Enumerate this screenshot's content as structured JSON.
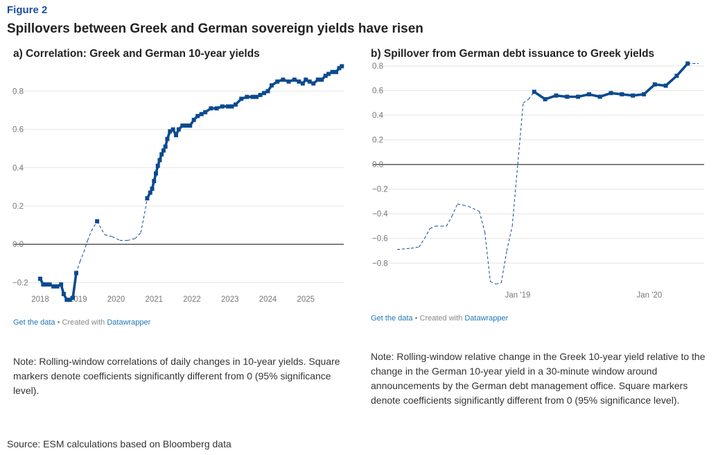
{
  "figure_label": "Figure 2",
  "title": "Spillovers between Greek and German sovereign yields have risen",
  "panel_a": {
    "title": "a) Correlation: Greek and German 10-year yields",
    "footer_get": "Get the data",
    "footer_mid": " • Created with ",
    "footer_tool": "Datawrapper",
    "note": "Note: Rolling-window correlations of daily changes in 10-year yields. Square markers denote coefficients significantly different from 0 (95% significance level)."
  },
  "panel_b": {
    "title": "b) Spillover from German debt issuance to Greek yields",
    "footer_get": "Get the data",
    "footer_mid": " • Created with ",
    "footer_tool": "Datawrapper",
    "note": "Note: Rolling-window relative change in the Greek 10-year yield relative to the change in the German 10-year yield in a 30-minute window around announcements by the German debt management office. Square markers denote coefficients significantly different from 0 (95% significance level)."
  },
  "source": "Source: ESM calculations based on Bloomberg data",
  "colors": {
    "accent": "#1f4e9c",
    "series": "#0b4a8f",
    "grid": "#e4e4e4",
    "zero": "#222222"
  },
  "chart_data": [
    {
      "type": "line",
      "title": "a) Correlation: Greek and German 10-year yields",
      "xlabel": "",
      "ylabel": "",
      "xlim": [
        2018.0,
        2026.0
      ],
      "ylim": [
        -0.3,
        0.95
      ],
      "yticks": [
        -0.2,
        0.0,
        0.2,
        0.4,
        0.6,
        0.8
      ],
      "ytick_labels": [
        "−0.2",
        "0.0",
        "0.2",
        "0.4",
        "0.6",
        "0.8"
      ],
      "xticks": [
        2018,
        2019,
        2020,
        2021,
        2022,
        2023,
        2024,
        2025
      ],
      "xtick_labels": [
        "2018",
        "2019",
        "2020",
        "2021",
        "2022",
        "2023",
        "2024",
        "2025"
      ],
      "series": [
        {
          "name": "Correlation",
          "note": "thick line with square markers = significant; dashed = not significant",
          "x": [
            2018.0,
            2018.08,
            2018.15,
            2018.25,
            2018.35,
            2018.45,
            2018.55,
            2018.62,
            2018.7,
            2018.78,
            2018.86,
            2018.95,
            2019.05,
            2019.15,
            2019.25,
            2019.35,
            2019.5,
            2019.7,
            2019.9,
            2020.1,
            2020.3,
            2020.5,
            2020.65,
            2020.75,
            2020.82,
            2020.9,
            2020.95,
            2021.0,
            2021.05,
            2021.1,
            2021.15,
            2021.2,
            2021.25,
            2021.3,
            2021.35,
            2021.42,
            2021.5,
            2021.58,
            2021.65,
            2021.75,
            2021.85,
            2021.95,
            2022.05,
            2022.15,
            2022.25,
            2022.35,
            2022.5,
            2022.65,
            2022.8,
            2022.95,
            2023.05,
            2023.15,
            2023.3,
            2023.45,
            2023.6,
            2023.7,
            2023.8,
            2023.9,
            2024.0,
            2024.1,
            2024.25,
            2024.4,
            2024.55,
            2024.7,
            2024.82,
            2024.92,
            2025.0,
            2025.1,
            2025.2,
            2025.32,
            2025.42,
            2025.52,
            2025.6,
            2025.7,
            2025.8,
            2025.88,
            2025.95
          ],
          "y": [
            -0.18,
            -0.21,
            -0.21,
            -0.21,
            -0.22,
            -0.22,
            -0.21,
            -0.26,
            -0.29,
            -0.29,
            -0.28,
            -0.15,
            -0.09,
            -0.04,
            0.02,
            0.07,
            0.12,
            0.05,
            0.04,
            0.02,
            0.02,
            0.03,
            0.06,
            0.16,
            0.24,
            0.27,
            0.29,
            0.33,
            0.37,
            0.41,
            0.44,
            0.47,
            0.49,
            0.51,
            0.55,
            0.59,
            0.6,
            0.57,
            0.6,
            0.62,
            0.62,
            0.62,
            0.65,
            0.67,
            0.68,
            0.69,
            0.71,
            0.71,
            0.72,
            0.72,
            0.72,
            0.73,
            0.76,
            0.77,
            0.77,
            0.77,
            0.78,
            0.79,
            0.8,
            0.83,
            0.85,
            0.86,
            0.85,
            0.86,
            0.85,
            0.84,
            0.86,
            0.85,
            0.84,
            0.86,
            0.86,
            0.88,
            0.89,
            0.9,
            0.9,
            0.92,
            0.93
          ],
          "significant": [
            true,
            true,
            true,
            true,
            true,
            true,
            true,
            true,
            true,
            true,
            true,
            true,
            false,
            false,
            false,
            false,
            true,
            false,
            false,
            false,
            false,
            false,
            false,
            false,
            true,
            true,
            true,
            true,
            true,
            true,
            true,
            true,
            true,
            true,
            true,
            true,
            true,
            true,
            true,
            true,
            true,
            true,
            true,
            true,
            true,
            true,
            true,
            true,
            true,
            true,
            true,
            true,
            true,
            true,
            true,
            true,
            true,
            true,
            true,
            true,
            true,
            true,
            true,
            true,
            true,
            true,
            true,
            true,
            true,
            true,
            true,
            true,
            true,
            true,
            true,
            true,
            true
          ]
        }
      ]
    },
    {
      "type": "line",
      "title": "b) Spillover from German debt issuance to Greek yields",
      "xlabel": "",
      "ylabel": "",
      "xlim": [
        0,
        56
      ],
      "ylim": [
        -0.99,
        0.84
      ],
      "yticks": [
        -0.8,
        -0.6,
        -0.4,
        -0.2,
        0.0,
        0.2,
        0.4,
        0.6,
        0.8
      ],
      "ytick_labels": [
        "−0.8",
        "−0.6",
        "−0.4",
        "−0.2",
        "0.0",
        "0.2",
        "0.4",
        "0.6",
        "0.8"
      ],
      "xticks": [
        22,
        46
      ],
      "xtick_labels": [
        "Jan '19",
        "Jan '20"
      ],
      "series": [
        {
          "name": "Spillover",
          "note": "thick line with square markers = significant; dashed = not significant",
          "x": [
            0,
            2.5,
            4,
            5,
            6,
            7,
            8,
            9,
            10,
            11,
            12,
            13,
            15,
            16,
            17,
            18,
            19,
            20,
            21,
            22,
            23,
            24,
            25,
            27,
            29,
            31,
            33,
            35,
            37,
            39,
            41,
            43,
            45,
            47,
            49,
            51,
            53,
            55
          ],
          "y": [
            -0.69,
            -0.68,
            -0.67,
            -0.6,
            -0.52,
            -0.5,
            -0.5,
            -0.5,
            -0.42,
            -0.32,
            -0.33,
            -0.34,
            -0.38,
            -0.55,
            -0.95,
            -0.97,
            -0.96,
            -0.7,
            -0.5,
            0.0,
            0.5,
            0.53,
            0.59,
            0.53,
            0.56,
            0.55,
            0.55,
            0.57,
            0.55,
            0.58,
            0.57,
            0.56,
            0.57,
            0.65,
            0.64,
            0.72,
            0.82,
            0.82
          ],
          "significant": [
            false,
            false,
            false,
            false,
            false,
            false,
            false,
            false,
            false,
            false,
            false,
            false,
            false,
            false,
            false,
            false,
            false,
            false,
            false,
            false,
            false,
            false,
            true,
            true,
            true,
            true,
            true,
            true,
            true,
            true,
            true,
            true,
            true,
            true,
            true,
            true,
            true,
            false
          ]
        }
      ]
    }
  ]
}
